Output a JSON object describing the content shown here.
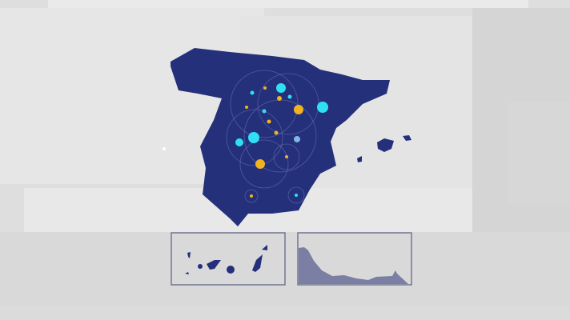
{
  "colors": {
    "background": "#e2e2e2",
    "land": "#24307a",
    "marker_primary": "#2fe0f5",
    "marker_secondary": "#f2b31f",
    "marker_tertiary": "#7fb6e6",
    "inset_border": "#5a5f86",
    "inset_land": "#7a7fa3"
  },
  "map": {
    "region": "spain",
    "insets": [
      "canary-islands",
      "ceuta-melilla-coast"
    ]
  }
}
